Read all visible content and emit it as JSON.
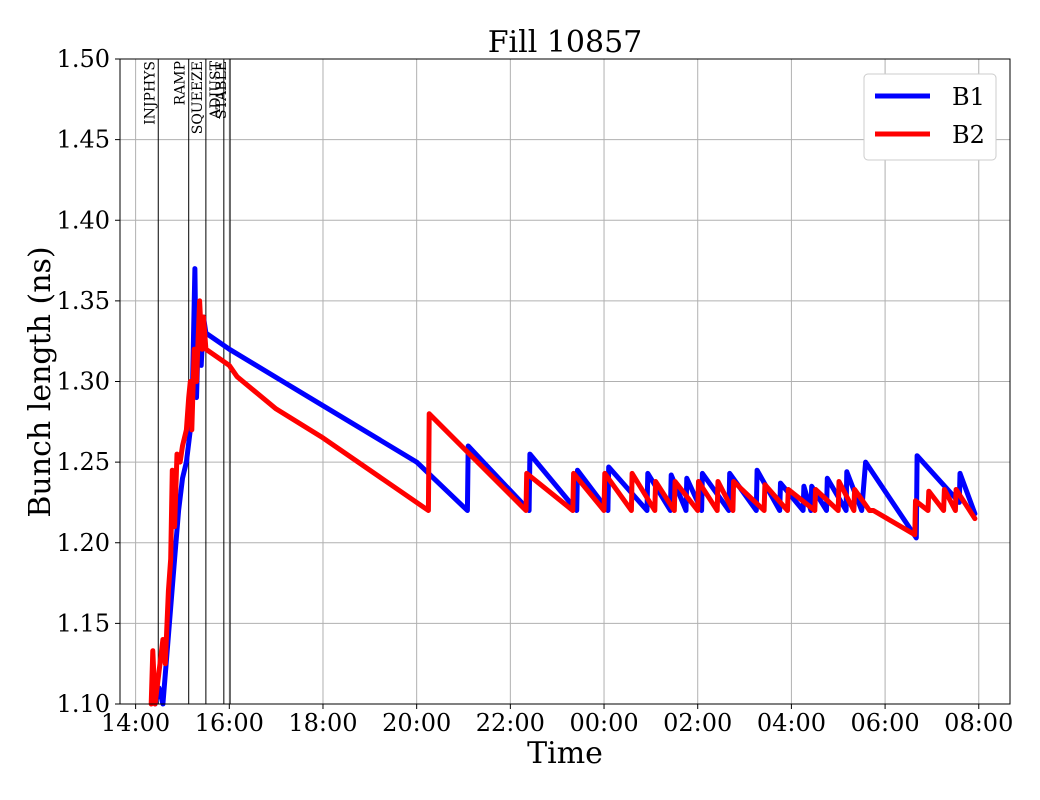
{
  "chart_data": {
    "type": "line",
    "title": "Fill 10857",
    "xlabel": "Time",
    "ylabel": "Bunch length (ns)",
    "xlim": [
      "13:40",
      "08:40"
    ],
    "ylim": [
      1.1,
      1.5
    ],
    "grid": true,
    "legend_position": "top-right",
    "x_ticks": [
      "14:00",
      "16:00",
      "18:00",
      "20:00",
      "22:00",
      "00:00",
      "02:00",
      "04:00",
      "06:00",
      "08:00"
    ],
    "y_ticks": [
      "1.10",
      "1.15",
      "1.20",
      "1.25",
      "1.30",
      "1.35",
      "1.40",
      "1.45",
      "1.50"
    ],
    "phases": [
      {
        "name": "INJPHYS",
        "time": "14:29"
      },
      {
        "name": "RAMP",
        "time": "15:08"
      },
      {
        "name": "SQUEEZE",
        "time": "15:30"
      },
      {
        "name": "ADJUST",
        "time": "15:53"
      },
      {
        "name": "STABLE",
        "time": "16:01"
      }
    ],
    "series": [
      {
        "name": "B1",
        "color": "#0000ff",
        "points": [
          [
            "14:25",
            1.1
          ],
          [
            "14:30",
            1.11
          ],
          [
            "14:35",
            1.1
          ],
          [
            "14:40",
            1.13
          ],
          [
            "14:45",
            1.16
          ],
          [
            "14:50",
            1.19
          ],
          [
            "14:55",
            1.22
          ],
          [
            "15:00",
            1.24
          ],
          [
            "15:05",
            1.25
          ],
          [
            "15:10",
            1.27
          ],
          [
            "15:13",
            1.3
          ],
          [
            "15:16",
            1.37
          ],
          [
            "15:18",
            1.29
          ],
          [
            "15:21",
            1.34
          ],
          [
            "15:24",
            1.31
          ],
          [
            "15:27",
            1.34
          ],
          [
            "15:30",
            1.33
          ],
          [
            "16:00",
            1.32
          ],
          [
            "18:00",
            1.285
          ],
          [
            "20:00",
            1.25
          ],
          [
            "21:05",
            1.22
          ],
          [
            "21:06",
            1.26
          ],
          [
            "22:24",
            1.22
          ],
          [
            "22:25",
            1.255
          ],
          [
            "23:25",
            1.22
          ],
          [
            "23:26",
            1.245
          ],
          [
            "00:05",
            1.22
          ],
          [
            "00:06",
            1.247
          ],
          [
            "00:55",
            1.22
          ],
          [
            "00:56",
            1.243
          ],
          [
            "01:25",
            1.22
          ],
          [
            "01:26",
            1.242
          ],
          [
            "01:45",
            1.22
          ],
          [
            "01:46",
            1.24
          ],
          [
            "02:05",
            1.22
          ],
          [
            "02:06",
            1.243
          ],
          [
            "02:40",
            1.22
          ],
          [
            "02:41",
            1.243
          ],
          [
            "03:15",
            1.22
          ],
          [
            "03:16",
            1.245
          ],
          [
            "03:45",
            1.22
          ],
          [
            "03:46",
            1.237
          ],
          [
            "04:15",
            1.22
          ],
          [
            "04:16",
            1.235
          ],
          [
            "04:25",
            1.22
          ],
          [
            "04:26",
            1.235
          ],
          [
            "04:45",
            1.22
          ],
          [
            "04:46",
            1.24
          ],
          [
            "05:10",
            1.22
          ],
          [
            "05:11",
            1.244
          ],
          [
            "05:30",
            1.22
          ],
          [
            "05:35",
            1.25
          ],
          [
            "06:40",
            1.203
          ],
          [
            "06:41",
            1.254
          ],
          [
            "07:35",
            1.225
          ],
          [
            "07:36",
            1.243
          ],
          [
            "07:55",
            1.218
          ]
        ]
      },
      {
        "name": "B2",
        "color": "#ff0000",
        "points": [
          [
            "14:20",
            1.1
          ],
          [
            "14:22",
            1.133
          ],
          [
            "14:25",
            1.1
          ],
          [
            "14:30",
            1.12
          ],
          [
            "14:35",
            1.14
          ],
          [
            "14:38",
            1.125
          ],
          [
            "14:42",
            1.17
          ],
          [
            "14:45",
            1.19
          ],
          [
            "14:47",
            1.245
          ],
          [
            "14:50",
            1.21
          ],
          [
            "14:53",
            1.255
          ],
          [
            "14:57",
            1.25
          ],
          [
            "15:00",
            1.26
          ],
          [
            "15:05",
            1.27
          ],
          [
            "15:08",
            1.29
          ],
          [
            "15:10",
            1.3
          ],
          [
            "15:12",
            1.27
          ],
          [
            "15:15",
            1.32
          ],
          [
            "15:18",
            1.3
          ],
          [
            "15:22",
            1.35
          ],
          [
            "15:25",
            1.32
          ],
          [
            "15:27",
            1.34
          ],
          [
            "15:30",
            1.32
          ],
          [
            "16:00",
            1.31
          ],
          [
            "16:10",
            1.303
          ],
          [
            "17:00",
            1.283
          ],
          [
            "18:00",
            1.265
          ],
          [
            "20:15",
            1.22
          ],
          [
            "20:16",
            1.28
          ],
          [
            "22:20",
            1.22
          ],
          [
            "22:21",
            1.243
          ],
          [
            "23:20",
            1.22
          ],
          [
            "23:21",
            1.243
          ],
          [
            "00:00",
            1.22
          ],
          [
            "00:01",
            1.243
          ],
          [
            "00:35",
            1.22
          ],
          [
            "00:36",
            1.243
          ],
          [
            "01:05",
            1.22
          ],
          [
            "01:06",
            1.238
          ],
          [
            "01:30",
            1.22
          ],
          [
            "01:31",
            1.238
          ],
          [
            "02:00",
            1.22
          ],
          [
            "02:01",
            1.238
          ],
          [
            "02:25",
            1.22
          ],
          [
            "02:26",
            1.238
          ],
          [
            "02:45",
            1.22
          ],
          [
            "02:46",
            1.238
          ],
          [
            "03:25",
            1.22
          ],
          [
            "03:26",
            1.236
          ],
          [
            "03:55",
            1.22
          ],
          [
            "03:56",
            1.233
          ],
          [
            "04:30",
            1.22
          ],
          [
            "04:31",
            1.233
          ],
          [
            "05:00",
            1.22
          ],
          [
            "05:01",
            1.238
          ],
          [
            "05:20",
            1.22
          ],
          [
            "05:21",
            1.233
          ],
          [
            "05:40",
            1.22
          ],
          [
            "05:45",
            1.22
          ],
          [
            "06:38",
            1.205
          ],
          [
            "06:39",
            1.226
          ],
          [
            "06:55",
            1.22
          ],
          [
            "06:56",
            1.232
          ],
          [
            "07:15",
            1.22
          ],
          [
            "07:16",
            1.233
          ],
          [
            "07:30",
            1.22
          ],
          [
            "07:31",
            1.233
          ],
          [
            "07:55",
            1.215
          ]
        ]
      }
    ]
  }
}
